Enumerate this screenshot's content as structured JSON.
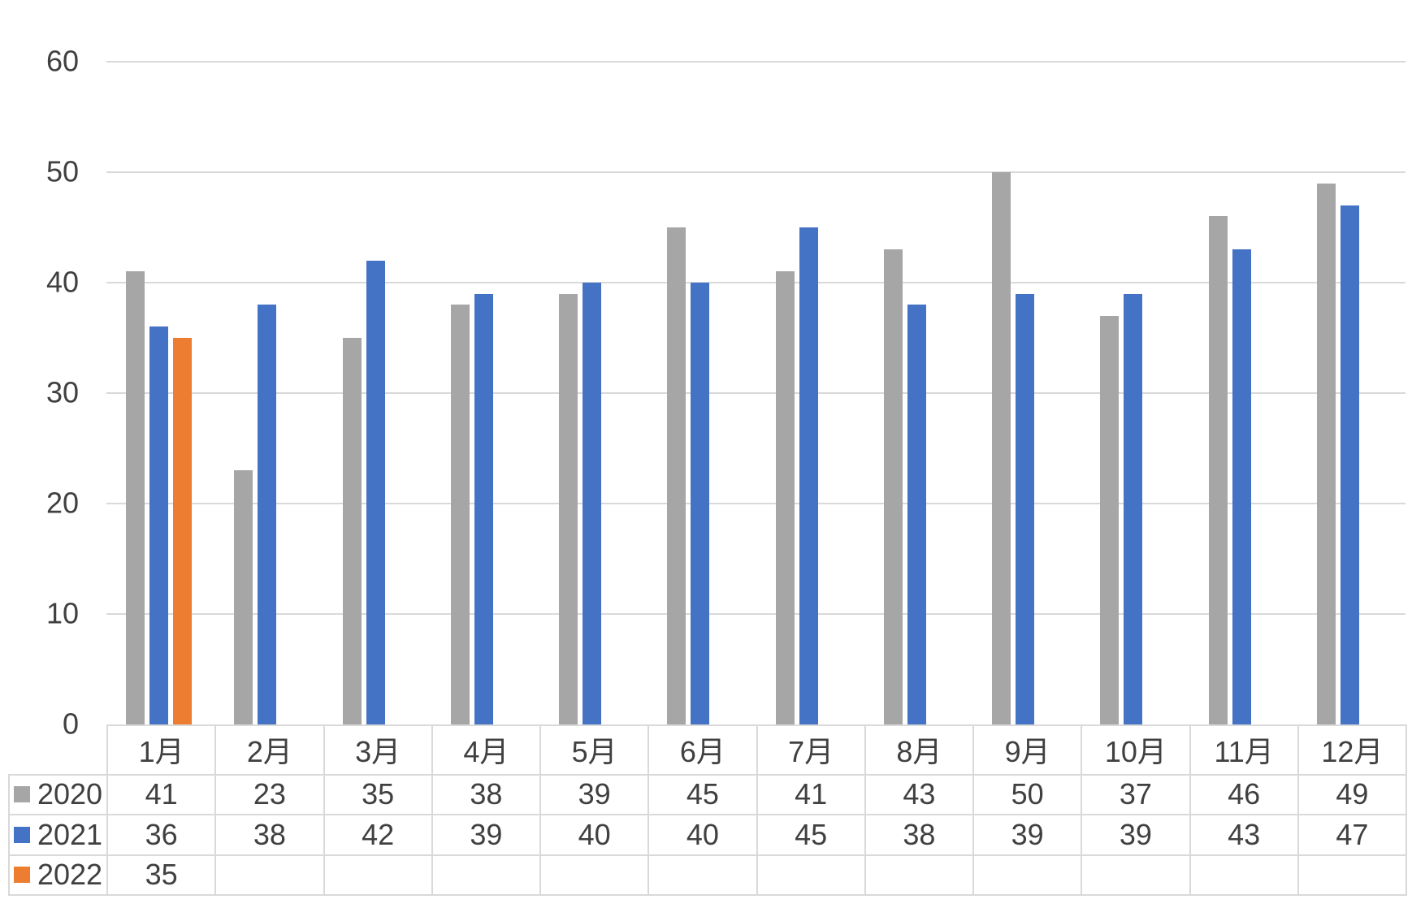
{
  "chart_data": {
    "type": "bar",
    "title": "",
    "xlabel": "",
    "ylabel": "",
    "categories": [
      "1月",
      "2月",
      "3月",
      "4月",
      "5月",
      "6月",
      "7月",
      "8月",
      "9月",
      "10月",
      "11月",
      "12月"
    ],
    "series": [
      {
        "name": "2020",
        "color": "#A6A6A6",
        "values": [
          41,
          23,
          35,
          38,
          39,
          45,
          41,
          43,
          50,
          37,
          46,
          49
        ]
      },
      {
        "name": "2021",
        "color": "#4472C4",
        "values": [
          36,
          38,
          42,
          39,
          40,
          40,
          45,
          38,
          39,
          39,
          43,
          47
        ]
      },
      {
        "name": "2022",
        "color": "#ED7D31",
        "values": [
          35,
          null,
          null,
          null,
          null,
          null,
          null,
          null,
          null,
          null,
          null,
          null
        ]
      }
    ],
    "ylim": [
      0,
      60
    ],
    "yticks": [
      0,
      10,
      20,
      30,
      40,
      50,
      60
    ],
    "grid": true,
    "legend_position": "data-table-left-keys",
    "data_table": true
  },
  "colors": {
    "grid": "#D9D9D9",
    "table_border": "#D9D9D9",
    "text": "#404040",
    "background": "#FFFFFF"
  }
}
